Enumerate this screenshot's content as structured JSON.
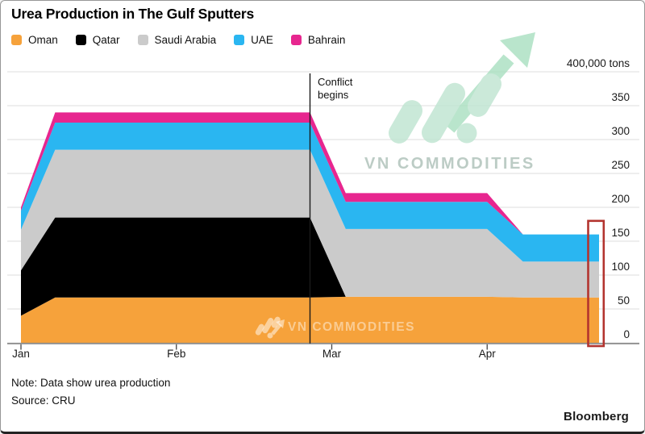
{
  "title": "Urea Production in The Gulf Sputters",
  "legend": [
    {
      "label": "Oman",
      "color": "#F6A23B"
    },
    {
      "label": "Qatar",
      "color": "#000000"
    },
    {
      "label": "Saudi Arabia",
      "color": "#CBCBCB"
    },
    {
      "label": "UAE",
      "color": "#2AB6F1"
    },
    {
      "label": "Bahrain",
      "color": "#E7268F"
    }
  ],
  "y_axis": {
    "top_label": "400,000 tons",
    "ticks": [
      350,
      300,
      250,
      200,
      150,
      100,
      50,
      0
    ],
    "grid_values": [
      400,
      350,
      300,
      250,
      200,
      150,
      100,
      50
    ]
  },
  "x_axis": {
    "ticks": [
      "Jan",
      "Feb",
      "Mar",
      "Apr"
    ]
  },
  "annotation": {
    "line1": "Conflict",
    "line2": "begins",
    "x_month": 1.86
  },
  "highlight_box": {
    "x_month_start": 3.65,
    "x_month_end": 3.75,
    "value_top": 180,
    "color": "#B3342F"
  },
  "watermark": {
    "text": "VN COMMODITIES"
  },
  "note": "Note: Data show urea production",
  "source": "Source: CRU",
  "attribution": "Bloomberg",
  "chart_data": {
    "type": "area",
    "stacked": true,
    "title": "Urea Production in The Gulf Sputters",
    "unit": "thousand tons",
    "ylim": [
      0,
      400
    ],
    "grid": true,
    "legend_position": "top",
    "x_months": [
      0,
      0.22,
      1.86,
      2.09,
      3.0,
      3.23,
      3.72
    ],
    "month_tick_labels": [
      "Jan",
      "Feb",
      "Mar",
      "Apr"
    ],
    "annotation": "Conflict begins at x_month 1.86 (late February)",
    "series": [
      {
        "name": "Oman",
        "color": "#F6A23B",
        "values": [
          40,
          67,
          67,
          68,
          68,
          67,
          67
        ]
      },
      {
        "name": "Qatar",
        "color": "#000000",
        "values": [
          67,
          118,
          118,
          0,
          0,
          0,
          0
        ]
      },
      {
        "name": "Saudi Arabia",
        "color": "#CBCBCB",
        "values": [
          60,
          100,
          100,
          100,
          100,
          53,
          53
        ]
      },
      {
        "name": "UAE",
        "color": "#2AB6F1",
        "values": [
          28,
          40,
          40,
          40,
          40,
          40,
          40
        ]
      },
      {
        "name": "Bahrain",
        "color": "#E7268F",
        "values": [
          5,
          15,
          15,
          13,
          13,
          0,
          0
        ]
      }
    ],
    "stack_totals": [
      200,
      340,
      340,
      221,
      221,
      160,
      160
    ]
  }
}
